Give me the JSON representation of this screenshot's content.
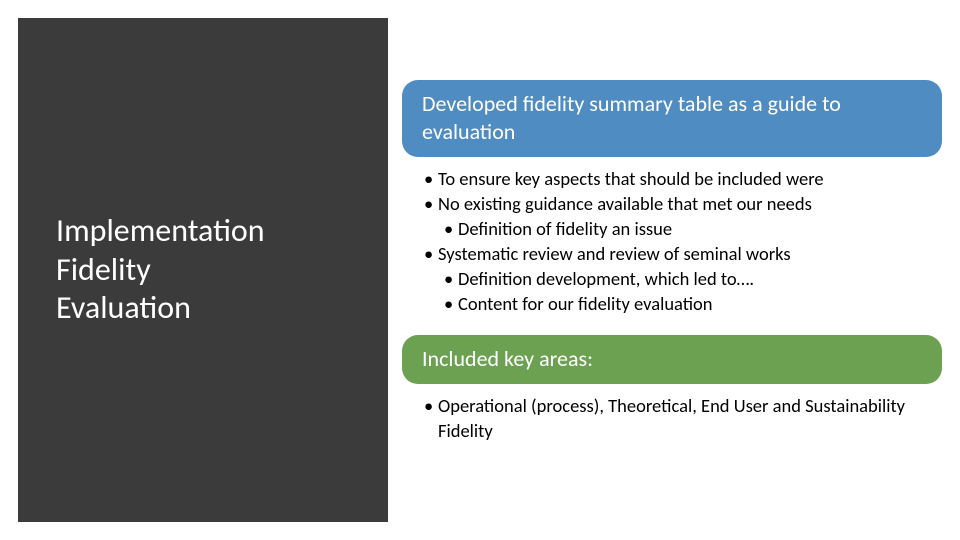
{
  "colors": {
    "left_panel_bg": "#3b3b3b",
    "pill_blue": "#4f8cc1",
    "pill_green": "#6ca152",
    "text_light": "#ffffff",
    "text_dark": "#000000"
  },
  "left": {
    "title_line1": "Implementation",
    "title_line2": "Fidelity",
    "title_line3": "Evaluation"
  },
  "section1": {
    "heading": "Developed fidelity summary table as a guide to evaluation",
    "bullets": [
      {
        "lvl": 1,
        "text": "To ensure key aspects that should be included were"
      },
      {
        "lvl": 1,
        "text": "No existing guidance available that met our needs"
      },
      {
        "lvl": 2,
        "text": "Definition of fidelity an issue"
      },
      {
        "lvl": 1,
        "text": "Systematic review and review of seminal works"
      },
      {
        "lvl": 2,
        "text": "Definition development, which led to…."
      },
      {
        "lvl": 2,
        "text": "Content for our fidelity evaluation"
      }
    ]
  },
  "section2": {
    "heading": "Included key areas:",
    "bullets": [
      {
        "lvl": 1,
        "text": "Operational (process), Theoretical, End User and Sustainability Fidelity"
      }
    ]
  },
  "style": {
    "left_title_fontsize": 32,
    "pill_fontsize": 22,
    "bullet_fontsize": 18.5,
    "pill_radius": 16
  }
}
